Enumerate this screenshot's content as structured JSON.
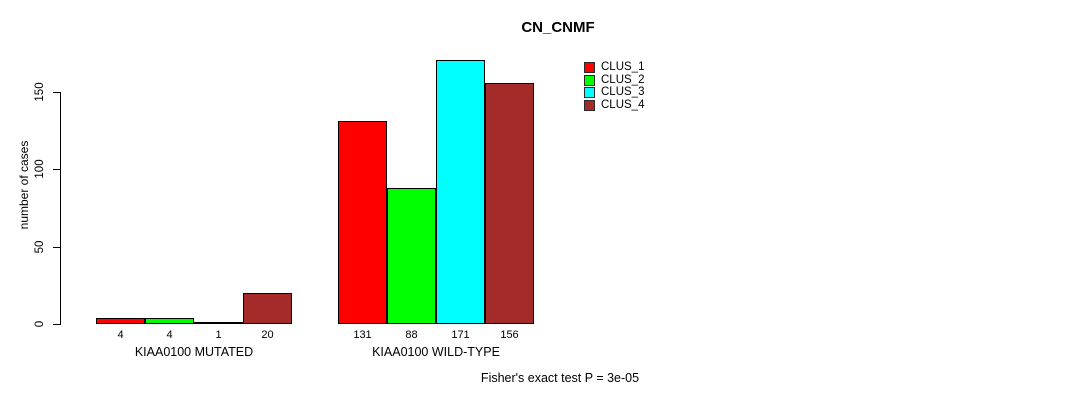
{
  "chart_data": {
    "type": "bar",
    "title": "CN_CNMF",
    "xlabel": "",
    "ylabel": "number of cases",
    "yticks": [
      0,
      50,
      100,
      150
    ],
    "ylim": [
      0,
      175
    ],
    "grid": false,
    "legend_position": "top-right-inside",
    "series": [
      {
        "name": "CLUS_1",
        "color": "#FF0000"
      },
      {
        "name": "CLUS_2",
        "color": "#00FF00"
      },
      {
        "name": "CLUS_3",
        "color": "#00FFFF"
      },
      {
        "name": "CLUS_4",
        "color": "#A52A2A"
      }
    ],
    "categories": [
      "KIAA0100 MUTATED",
      "KIAA0100 WILD-TYPE"
    ],
    "groups": [
      {
        "label": "KIAA0100 MUTATED",
        "values": [
          4,
          4,
          1,
          20
        ]
      },
      {
        "label": "KIAA0100 WILD-TYPE",
        "values": [
          131,
          88,
          171,
          156
        ]
      }
    ],
    "bar_value_labels": true,
    "annotation": "Fisher's exact test P = 3e-05"
  }
}
